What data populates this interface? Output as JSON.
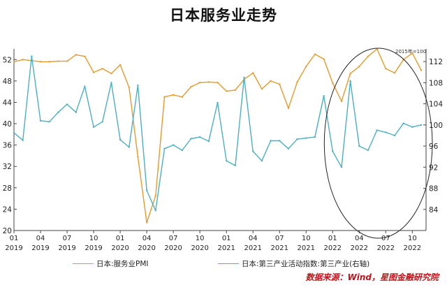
{
  "title": "日本服务业走势",
  "source_note": "数据来源：Wind，星图金融研究院",
  "chart_data": {
    "type": "line",
    "title": "日本服务业走势",
    "right_axis_unit": "2015年=100",
    "x": [
      "2019-01",
      "2019-02",
      "2019-03",
      "2019-04",
      "2019-05",
      "2019-06",
      "2019-07",
      "2019-08",
      "2019-09",
      "2019-10",
      "2019-11",
      "2019-12",
      "2020-01",
      "2020-02",
      "2020-03",
      "2020-04",
      "2020-05",
      "2020-06",
      "2020-07",
      "2020-08",
      "2020-09",
      "2020-10",
      "2020-11",
      "2020-12",
      "2021-01",
      "2021-02",
      "2021-03",
      "2021-04",
      "2021-05",
      "2021-06",
      "2021-07",
      "2021-08",
      "2021-09",
      "2021-10",
      "2021-11",
      "2021-12",
      "2022-01",
      "2022-02",
      "2022-03",
      "2022-04",
      "2022-05",
      "2022-06",
      "2022-07",
      "2022-08",
      "2022-09",
      "2022-10",
      "2022-11"
    ],
    "x_tick_labels": [
      {
        "month": "01",
        "year": "2019"
      },
      {
        "month": "04",
        "year": "2019"
      },
      {
        "month": "07",
        "year": "2019"
      },
      {
        "month": "10",
        "year": "2019"
      },
      {
        "month": "01",
        "year": "2020"
      },
      {
        "month": "04",
        "year": "2020"
      },
      {
        "month": "07",
        "year": "2020"
      },
      {
        "month": "10",
        "year": "2020"
      },
      {
        "month": "01",
        "year": "2021"
      },
      {
        "month": "04",
        "year": "2021"
      },
      {
        "month": "07",
        "year": "2021"
      },
      {
        "month": "10",
        "year": "2021"
      },
      {
        "month": "01",
        "year": "2022"
      },
      {
        "month": "04",
        "year": "2022"
      },
      {
        "month": "07",
        "year": "2022"
      },
      {
        "month": "10",
        "year": "2022"
      }
    ],
    "y_left": {
      "min": 20,
      "max": 54,
      "ticks": [
        20,
        24,
        28,
        32,
        36,
        40,
        44,
        48,
        52
      ]
    },
    "y_right": {
      "min": 80,
      "max": 114.4,
      "ticks": [
        84,
        88,
        92,
        96,
        100,
        104,
        108,
        112
      ]
    },
    "series": [
      {
        "name": "日本:服务业PMI",
        "axis": "left",
        "color": "#E69A2B",
        "values": [
          51.6,
          52.0,
          51.8,
          51.6,
          51.6,
          51.7,
          51.7,
          52.9,
          52.6,
          49.6,
          50.3,
          49.4,
          51.0,
          46.8,
          33.8,
          21.5,
          26.5,
          45.0,
          45.4,
          45.0,
          46.9,
          47.7,
          47.8,
          47.7,
          46.1,
          46.3,
          48.3,
          49.5,
          46.5,
          48.0,
          47.4,
          42.9,
          47.8,
          50.7,
          53.0,
          52.1,
          47.6,
          44.2,
          49.4,
          50.7,
          52.6,
          54.0,
          50.3,
          49.5,
          52.0,
          53.2,
          50.0
        ]
      },
      {
        "name": "日本:第三产业活动指数:第三产业(右轴)",
        "axis": "right",
        "color": "#4BAFC1",
        "values": [
          98.5,
          97.1,
          113.0,
          100.8,
          100.6,
          102.4,
          103.9,
          102.4,
          107.3,
          99.6,
          100.6,
          108.0,
          97.2,
          95.8,
          107.5,
          87.6,
          83.8,
          95.5,
          96.2,
          95.2,
          97.4,
          97.7,
          96.9,
          104.2,
          93.2,
          92.3,
          109.0,
          95.0,
          93.2,
          97.0,
          97.0,
          95.5,
          97.3,
          97.5,
          97.7,
          105.5,
          95.0,
          92.0,
          108.3,
          96.0,
          95.2,
          99.0,
          98.6,
          98.0,
          100.3,
          99.6,
          100.0
        ]
      }
    ],
    "annotations": [
      "highlight ellipse around 2022-01 to 2022-11"
    ]
  }
}
